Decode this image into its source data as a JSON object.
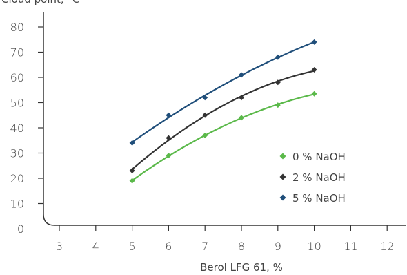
{
  "chart_data": {
    "type": "line",
    "ylabel": "Cloud point, °C",
    "xlabel": "Berol LFG 61, %",
    "xlim": [
      2.5,
      12.5
    ],
    "ylim": [
      0,
      85
    ],
    "xticks": [
      3,
      4,
      5,
      6,
      7,
      8,
      9,
      10,
      11,
      12
    ],
    "yticks": [
      0,
      10,
      20,
      30,
      40,
      50,
      60,
      70,
      80
    ],
    "x": [
      5,
      6,
      7,
      8,
      9,
      10
    ],
    "series": [
      {
        "name": "0 % NaOH",
        "color": "#5bb94a",
        "values": [
          19,
          29,
          37,
          44,
          49,
          53.5
        ]
      },
      {
        "name": "2 % NaOH",
        "color": "#333333",
        "values": [
          23,
          36,
          45,
          52,
          58,
          63
        ]
      },
      {
        "name": "5 % NaOH",
        "color": "#1f4e7a",
        "values": [
          34,
          45,
          52,
          61,
          68,
          74
        ]
      }
    ],
    "legend_position": "bottom-right",
    "grid": false
  }
}
